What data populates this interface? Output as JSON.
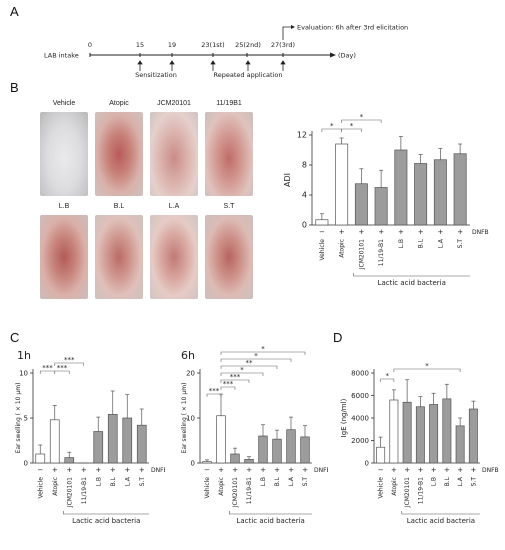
{
  "panels": {
    "a": "A",
    "b": "B",
    "c": "C",
    "d": "D"
  },
  "timeline": {
    "lab_intake": "LAB intake",
    "days": [
      "0",
      "15",
      "19",
      "23(1st)",
      "25(2nd)",
      "27(3rd)"
    ],
    "day_unit": "(Day)",
    "sensitization": "Sensitization",
    "repeated": "Repeated application",
    "evaluation": "Evaluation: 6h after 3rd elicitation"
  },
  "photos": {
    "row1": [
      "Vehicle",
      "Atopic",
      "JCM20101",
      "11/19B1"
    ],
    "row2": [
      "L.B",
      "B.L",
      "L.A",
      "S.T"
    ]
  },
  "common": {
    "categories": [
      "Vehicle",
      "Atopic",
      "JCM20101",
      "11/19-B1",
      "L.B",
      "B.L",
      "L.A",
      "S.T"
    ],
    "dnfb_signs": [
      "−",
      "+",
      "+",
      "+",
      "+",
      "+",
      "+",
      "+"
    ],
    "dnfb_label": "DNFB",
    "group_label": "Lactic acid bacteria"
  },
  "subtitles": {
    "c1": "1h",
    "c2": "6h"
  },
  "chart_data": [
    {
      "id": "B",
      "type": "bar",
      "ylabel": "ADI",
      "ylim": [
        0,
        12
      ],
      "yticks": [
        0,
        4,
        8,
        12
      ],
      "categories": [
        "Vehicle",
        "Atopic",
        "JCM20101",
        "11/19-B1",
        "L.B",
        "B.L",
        "L.A",
        "S.T"
      ],
      "values": [
        0.7,
        10.8,
        5.5,
        5.0,
        10.0,
        8.2,
        8.7,
        9.5
      ],
      "errors": [
        0.8,
        0.8,
        2.0,
        2.3,
        1.8,
        1.2,
        1.5,
        1.3
      ],
      "significance": [
        {
          "from": 0,
          "to": 1,
          "label": "*",
          "level": 1
        },
        {
          "from": 1,
          "to": 2,
          "label": "*",
          "level": 1
        },
        {
          "from": 1,
          "to": 3,
          "label": "*",
          "level": 2
        }
      ]
    },
    {
      "id": "C1h",
      "type": "bar",
      "ylabel": "Ear swelling ( × 10 μm)",
      "ylim": [
        0,
        10
      ],
      "yticks": [
        0,
        5,
        10
      ],
      "categories": [
        "Vehicle",
        "Atopic",
        "JCM20101",
        "11/19-B1",
        "L.B",
        "B.L",
        "L.A",
        "S.T"
      ],
      "values": [
        1.0,
        4.8,
        0.6,
        0.0,
        3.5,
        5.4,
        5.0,
        4.2
      ],
      "errors": [
        1.0,
        1.6,
        0.6,
        0.0,
        1.6,
        2.6,
        2.6,
        1.8
      ],
      "significance": [
        {
          "from": 0,
          "to": 1,
          "label": "***",
          "level": 1
        },
        {
          "from": 1,
          "to": 2,
          "label": "***",
          "level": 1
        },
        {
          "from": 1,
          "to": 3,
          "label": "***",
          "level": 2
        }
      ]
    },
    {
      "id": "C6h",
      "type": "bar",
      "ylabel": "Ear swelling ( × 10 μm)",
      "ylim": [
        0,
        20
      ],
      "yticks": [
        0,
        10,
        20
      ],
      "categories": [
        "Vehicle",
        "Atopic",
        "JCM20101",
        "11/19-B1",
        "L.B",
        "B.L",
        "L.A",
        "S.T"
      ],
      "values": [
        0.3,
        10.5,
        2.0,
        0.8,
        6.0,
        5.3,
        7.4,
        5.8
      ],
      "errors": [
        0.4,
        4.8,
        1.3,
        0.6,
        2.5,
        2.0,
        2.8,
        2.5
      ],
      "significance": [
        {
          "from": 0,
          "to": 1,
          "label": "***",
          "level": 1
        },
        {
          "from": 1,
          "to": 2,
          "label": "***",
          "level": 2
        },
        {
          "from": 1,
          "to": 3,
          "label": "***",
          "level": 3
        },
        {
          "from": 1,
          "to": 4,
          "label": "*",
          "level": 4
        },
        {
          "from": 1,
          "to": 5,
          "label": "**",
          "level": 5
        },
        {
          "from": 1,
          "to": 6,
          "label": "*",
          "level": 6
        },
        {
          "from": 1,
          "to": 7,
          "label": "*",
          "level": 7
        }
      ]
    },
    {
      "id": "D",
      "type": "bar",
      "ylabel": "IgE (ng/ml)",
      "ylim": [
        0,
        8000
      ],
      "yticks": [
        0,
        2000,
        4000,
        6000,
        8000
      ],
      "categories": [
        "Vehicle",
        "Atopic",
        "JCM20101",
        "11/19-B1",
        "L.B",
        "B.L",
        "L.A",
        "S.T"
      ],
      "values": [
        1400,
        5600,
        5400,
        5000,
        5200,
        5700,
        3300,
        4800
      ],
      "errors": [
        900,
        900,
        2000,
        900,
        1000,
        1300,
        700,
        700
      ],
      "significance": [
        {
          "from": 0,
          "to": 1,
          "label": "*",
          "level": 1
        },
        {
          "from": 1,
          "to": 6,
          "label": "*",
          "level": 2
        }
      ]
    }
  ]
}
